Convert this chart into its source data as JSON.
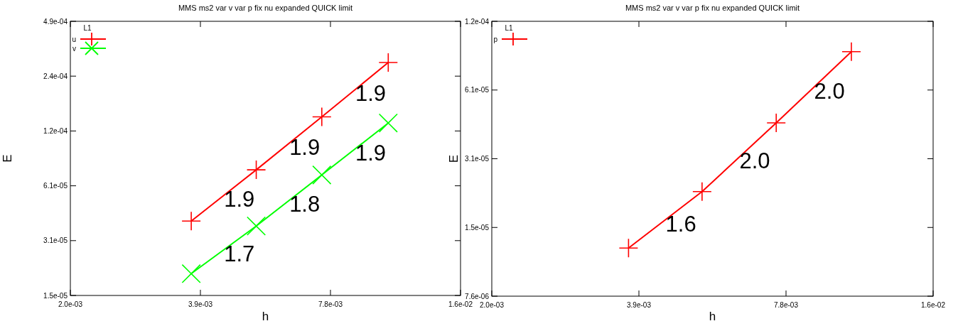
{
  "chart_data": [
    {
      "type": "line",
      "title": "MMS ms2 var v var p fix nu expanded QUICK limit",
      "xlabel": "h",
      "ylabel": "E",
      "log": "xy",
      "legend": "top left",
      "legend_title": "L1",
      "xlim": [
        0.001953125,
        0.015625
      ],
      "xticks": [
        {
          "value": 0.001953125,
          "label": "2.0e-03"
        },
        {
          "value": 0.00390625,
          "label": "3.9e-03"
        },
        {
          "value": 0.0078125,
          "label": "7.8e-03"
        },
        {
          "value": 0.015625,
          "label": "1.6e-02"
        }
      ],
      "ylim": [
        1.52587890625e-05,
        0.00048828125
      ],
      "yticks": [
        {
          "value": 1.52587890625e-05,
          "label": "1.5e-05"
        },
        {
          "value": 3.0517578125e-05,
          "label": "3.1e-05"
        },
        {
          "value": 6.103515625e-05,
          "label": "6.1e-05"
        },
        {
          "value": 0.0001220703125,
          "label": "1.2e-04"
        },
        {
          "value": 0.000244140625,
          "label": "2.4e-04"
        },
        {
          "value": 0.00048828125,
          "label": "4.9e-04"
        }
      ],
      "x": [
        0.00372,
        0.00526,
        0.00746,
        0.01063
      ],
      "series": [
        {
          "name": "u",
          "color": "#ff0000",
          "marker": "plus",
          "values": [
            3.91e-05,
            7.47e-05,
            0.000146,
            0.00029
          ]
        },
        {
          "name": "v",
          "color": "#00ff00",
          "marker": "cross",
          "values": [
            2.01e-05,
            3.67e-05,
            7e-05,
            0.000135
          ]
        }
      ],
      "annotations": [
        "1.9",
        "1.9",
        "1.9",
        "1.7",
        "1.8",
        "1.9"
      ]
    },
    {
      "type": "line",
      "title": "MMS ms2 var v var p fix nu expanded QUICK limit",
      "xlabel": "h",
      "ylabel": "E",
      "log": "xy",
      "legend": "top left",
      "legend_title": "L1",
      "xlim": [
        0.001953125,
        0.015625
      ],
      "xticks": [
        {
          "value": 0.001953125,
          "label": "2.0e-03"
        },
        {
          "value": 0.00390625,
          "label": "3.9e-03"
        },
        {
          "value": 0.0078125,
          "label": "7.8e-03"
        },
        {
          "value": 0.015625,
          "label": "1.6e-02"
        }
      ],
      "ylim": [
        7.62939453125e-06,
        0.0001220703125
      ],
      "yticks": [
        {
          "value": 7.62939453125e-06,
          "label": "7.6e-06"
        },
        {
          "value": 1.52587890625e-05,
          "label": "1.5e-05"
        },
        {
          "value": 3.0517578125e-05,
          "label": "3.1e-05"
        },
        {
          "value": 6.103515625e-05,
          "label": "6.1e-05"
        },
        {
          "value": 0.0001220703125,
          "label": "1.2e-04"
        }
      ],
      "x": [
        0.00372,
        0.00526,
        0.00746,
        0.01063
      ],
      "series": [
        {
          "name": "p",
          "color": "#ff0000",
          "marker": "plus",
          "values": [
            1.24e-05,
            2.19e-05,
            4.38e-05,
            8.99e-05
          ]
        }
      ],
      "annotations": [
        "1.6",
        "2.0",
        "2.0"
      ]
    }
  ]
}
